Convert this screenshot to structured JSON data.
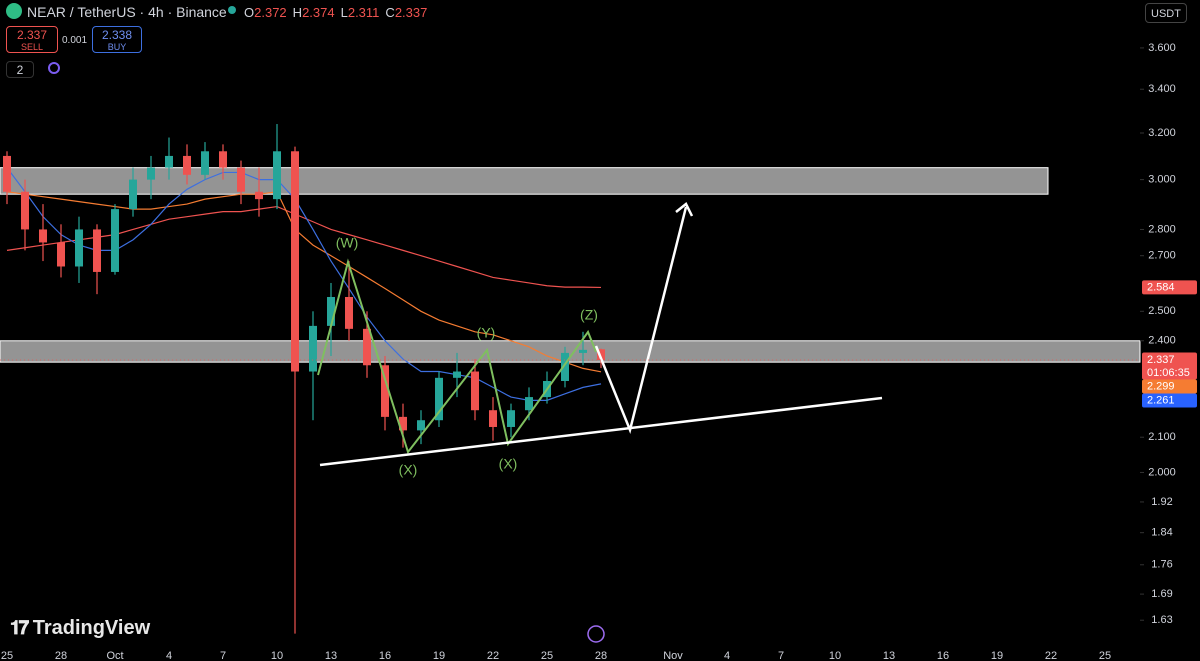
{
  "ui": {
    "symbol": "NEAR / TetherUS · 4h · Binance",
    "ohlc_labels": [
      "O",
      "H",
      "L",
      "C"
    ],
    "ohlc": [
      2.372,
      2.374,
      2.311,
      2.337
    ],
    "sell": {
      "price": 2.337,
      "label": "SELL"
    },
    "spread": 0.001,
    "buy": {
      "price": 2.338,
      "label": "BUY"
    },
    "indicators": 2,
    "currency": "USDT",
    "logo": "TradingView"
  },
  "chart_data": {
    "type": "candlestick",
    "log_scale": true,
    "up_color": "#26a69a",
    "down_color": "#ef5350",
    "categories": [
      "25",
      null,
      null,
      "28",
      null,
      null,
      "Oct",
      null,
      null,
      "4",
      null,
      null,
      "7",
      null,
      null,
      "10",
      null,
      null,
      "13",
      null,
      null,
      "16",
      null,
      null,
      "19",
      null,
      null,
      "22",
      null,
      null,
      "25",
      null,
      null,
      "28",
      null,
      null,
      null,
      "Nov",
      null,
      null,
      "4",
      null,
      null,
      "7",
      null,
      null,
      "10",
      null,
      null,
      "13",
      null,
      null,
      "16",
      null,
      null,
      "19",
      null,
      null,
      "22",
      null,
      null,
      "25",
      null
    ],
    "open": [
      3.1,
      2.95,
      2.8,
      2.75,
      2.66,
      2.8,
      2.64,
      2.88,
      3.0,
      3.05,
      3.1,
      3.02,
      3.12,
      3.05,
      2.95,
      2.92,
      3.12,
      2.3,
      2.45,
      2.55,
      2.44,
      2.32,
      2.16,
      2.12,
      2.15,
      2.28,
      2.3,
      2.18,
      2.13,
      2.18,
      2.22,
      2.27,
      2.36,
      2.372,
      null,
      null,
      null,
      null,
      null,
      null,
      null,
      null,
      null,
      null,
      null,
      null,
      null,
      null,
      null,
      null,
      null,
      null,
      null,
      null,
      null,
      null,
      null,
      null,
      null,
      null,
      null,
      null,
      null
    ],
    "high": [
      3.12,
      3.0,
      2.9,
      2.82,
      2.85,
      2.82,
      2.9,
      3.05,
      3.1,
      3.18,
      3.15,
      3.16,
      3.15,
      3.08,
      3.05,
      3.24,
      3.14,
      2.5,
      2.6,
      2.68,
      2.5,
      2.35,
      2.2,
      2.18,
      2.3,
      2.36,
      2.34,
      2.22,
      2.2,
      2.25,
      2.3,
      2.38,
      2.43,
      2.374,
      null,
      null,
      null,
      null,
      null,
      null,
      null,
      null,
      null,
      null,
      null,
      null,
      null,
      null,
      null,
      null,
      null,
      null,
      null,
      null,
      null,
      null,
      null,
      null,
      null,
      null,
      null,
      null,
      null
    ],
    "low": [
      2.9,
      2.72,
      2.68,
      2.62,
      2.6,
      2.56,
      2.63,
      2.85,
      2.92,
      3.0,
      2.98,
      3.0,
      3.0,
      2.9,
      2.85,
      2.88,
      1.6,
      2.15,
      2.35,
      2.4,
      2.28,
      2.12,
      2.07,
      2.08,
      2.13,
      2.22,
      2.15,
      2.09,
      2.1,
      2.15,
      2.2,
      2.25,
      2.32,
      2.311,
      null,
      null,
      null,
      null,
      null,
      null,
      null,
      null,
      null,
      null,
      null,
      null,
      null,
      null,
      null,
      null,
      null,
      null,
      null,
      null,
      null,
      null,
      null,
      null,
      null,
      null,
      null,
      null,
      null
    ],
    "close": [
      2.95,
      2.8,
      2.75,
      2.66,
      2.8,
      2.64,
      2.88,
      3.0,
      3.05,
      3.1,
      3.02,
      3.12,
      3.05,
      2.95,
      2.92,
      3.12,
      2.3,
      2.45,
      2.55,
      2.44,
      2.32,
      2.16,
      2.12,
      2.15,
      2.28,
      2.3,
      2.18,
      2.13,
      2.18,
      2.22,
      2.27,
      2.36,
      2.37,
      2.337,
      null,
      null,
      null,
      null,
      null,
      null,
      null,
      null,
      null,
      null,
      null,
      null,
      null,
      null,
      null,
      null,
      null,
      null,
      null,
      null,
      null,
      null,
      null,
      null,
      null,
      null,
      null,
      null,
      null
    ],
    "series": [
      {
        "color": "#ef5350",
        "values": [
          2.72,
          2.73,
          2.74,
          2.75,
          2.76,
          2.77,
          2.78,
          2.8,
          2.82,
          2.84,
          2.85,
          2.86,
          2.87,
          2.87,
          2.88,
          2.89,
          2.86,
          2.83,
          2.8,
          2.78,
          2.76,
          2.74,
          2.72,
          2.7,
          2.68,
          2.66,
          2.64,
          2.62,
          2.61,
          2.6,
          2.59,
          2.585,
          2.585,
          2.584,
          null,
          null,
          null,
          null,
          null,
          null,
          null,
          null,
          null,
          null,
          null,
          null,
          null,
          null,
          null,
          null,
          null,
          null,
          null,
          null,
          null,
          null,
          null,
          null,
          null,
          null,
          null,
          null,
          null
        ]
      },
      {
        "color": "#f57c32",
        "values": [
          2.95,
          2.94,
          2.93,
          2.92,
          2.91,
          2.9,
          2.89,
          2.88,
          2.88,
          2.89,
          2.9,
          2.92,
          2.93,
          2.94,
          2.94,
          2.95,
          2.8,
          2.74,
          2.7,
          2.66,
          2.62,
          2.58,
          2.54,
          2.5,
          2.47,
          2.45,
          2.43,
          2.42,
          2.4,
          2.38,
          2.35,
          2.33,
          2.31,
          2.299,
          null,
          null,
          null,
          null,
          null,
          null,
          null,
          null,
          null,
          null,
          null,
          null,
          null,
          null,
          null,
          null,
          null,
          null,
          null,
          null,
          null,
          null,
          null,
          null,
          null,
          null,
          null,
          null,
          null
        ]
      },
      {
        "color": "#3d6fe0",
        "values": [
          3.05,
          2.95,
          2.85,
          2.78,
          2.74,
          2.72,
          2.72,
          2.76,
          2.82,
          2.9,
          2.96,
          3.0,
          3.03,
          3.03,
          3.0,
          3.0,
          2.92,
          2.8,
          2.68,
          2.58,
          2.48,
          2.4,
          2.34,
          2.3,
          2.3,
          2.29,
          2.28,
          2.25,
          2.22,
          2.21,
          2.21,
          2.23,
          2.25,
          2.261,
          null,
          null,
          null,
          null,
          null,
          null,
          null,
          null,
          null,
          null,
          null,
          null,
          null,
          null,
          null,
          null,
          null,
          null,
          null,
          null,
          null,
          null,
          null,
          null,
          null,
          null,
          null,
          null,
          null
        ]
      }
    ],
    "last_price": 2.337,
    "countdown": "01:06:35",
    "zones": [
      [
        2.94,
        3.05
      ],
      [
        2.33,
        2.4
      ]
    ],
    "annotations": [
      "(W)",
      "(X)",
      "(Y)",
      "(X)",
      "(Z)"
    ],
    "ylim": [
      1.575,
      3.847
    ],
    "yticks": [
      {
        "value": 3.6,
        "label": "3.600"
      },
      {
        "value": 3.4,
        "label": "3.400"
      },
      {
        "value": 3.2,
        "label": "3.200"
      },
      {
        "value": 3.0,
        "label": "3.000"
      },
      {
        "value": 2.8,
        "label": "2.800"
      },
      {
        "value": 2.7,
        "label": "2.700"
      },
      {
        "value": 2.5,
        "label": "2.500"
      },
      {
        "value": 2.4,
        "label": "2.400"
      },
      {
        "value": 2.1,
        "label": "2.100"
      },
      {
        "value": 2.0,
        "label": "2.000"
      },
      1.92,
      1.84,
      1.76,
      1.69,
      1.63
    ]
  }
}
